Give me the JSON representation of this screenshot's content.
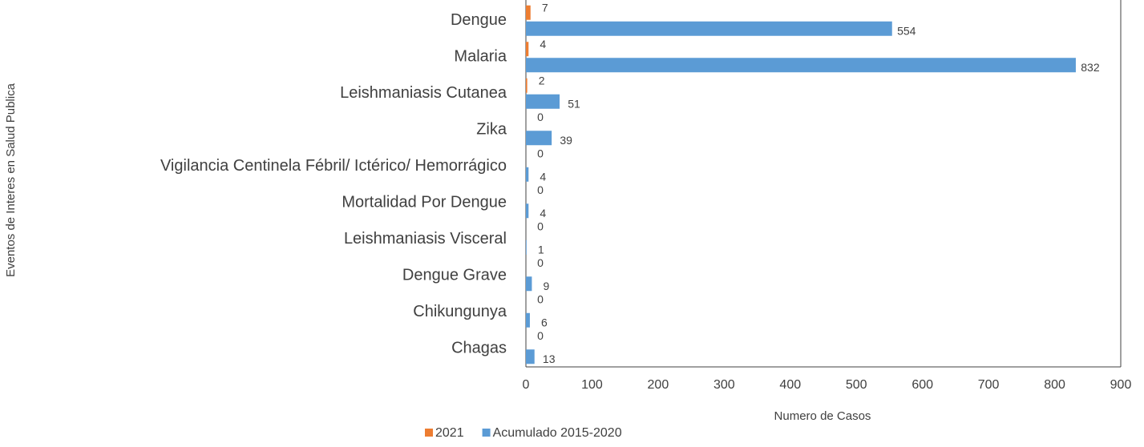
{
  "chart_data": {
    "type": "barh",
    "categories": [
      "Dengue",
      "Malaria",
      "Leishmaniasis Cutanea",
      "Zika",
      "Vigilancia Centinela Fébril/ Ictérico/ Hemorrágico",
      "Mortalidad Por Dengue",
      "Leishmaniasis Visceral",
      "Dengue Grave",
      "Chikungunya",
      "Chagas"
    ],
    "series": [
      {
        "name": "2021",
        "color": "#ed7d31",
        "values": [
          7,
          4,
          2,
          0,
          0,
          0,
          0,
          0,
          0,
          0
        ]
      },
      {
        "name": "Acumulado 2015-2020",
        "color": "#5b9bd5",
        "values": [
          554,
          832,
          51,
          39,
          4,
          4,
          1,
          9,
          6,
          13
        ]
      }
    ],
    "xlabel": "Numero de Casos",
    "ylabel": "Eventos de Interes en Salud Publica",
    "xlim": [
      0,
      900
    ],
    "xticks": [
      0,
      100,
      200,
      300,
      400,
      500,
      600,
      700,
      800,
      900
    ],
    "grid": false,
    "legend": "bottom"
  }
}
